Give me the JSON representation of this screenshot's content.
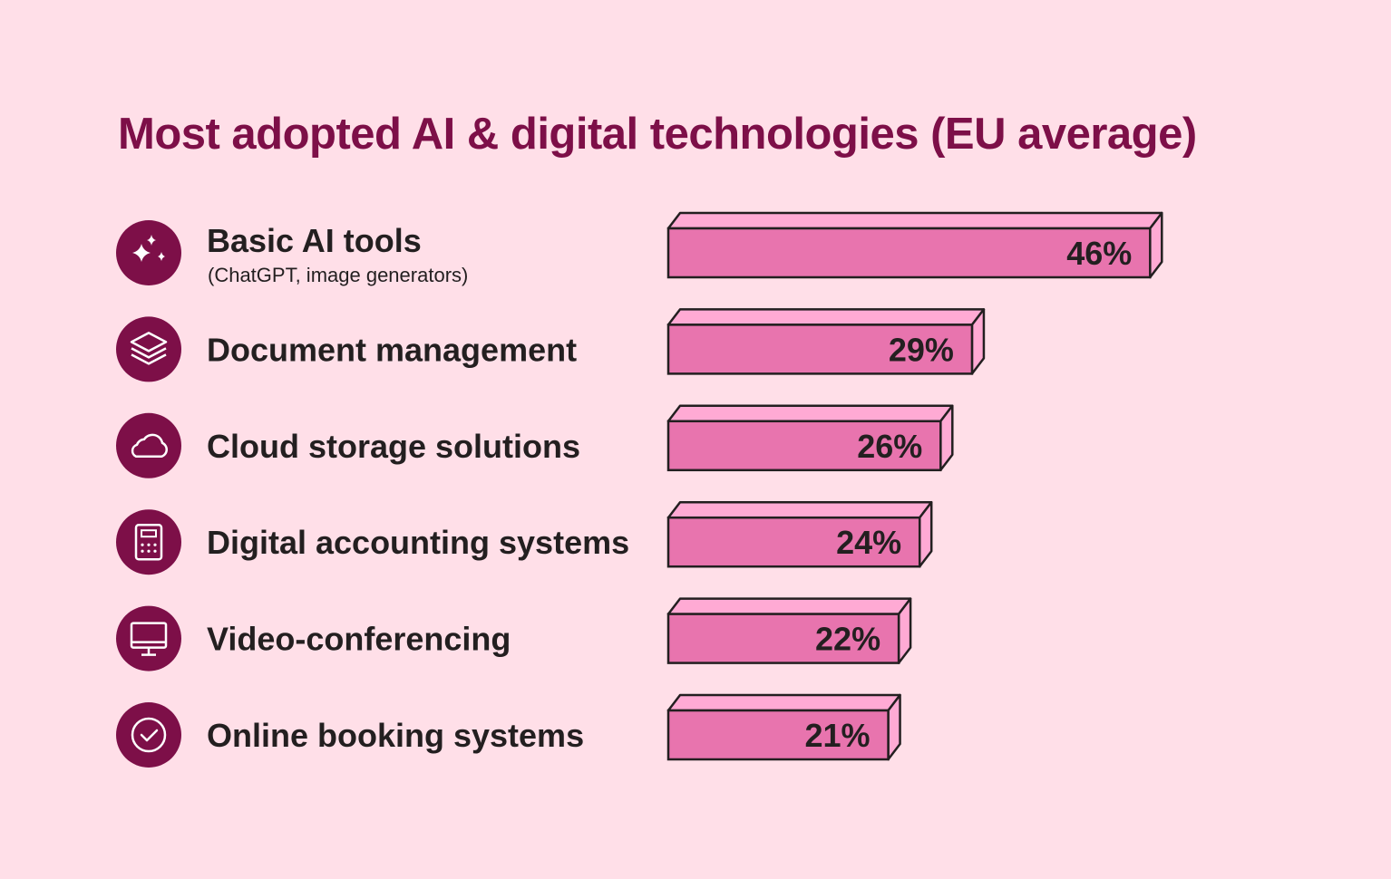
{
  "chart_data": {
    "type": "bar",
    "orientation": "horizontal",
    "title": "Most adopted AI & digital technologies (EU average)",
    "categories": [
      "Basic AI tools",
      "Document management",
      "Cloud storage solutions",
      "Digital accounting systems",
      "Video-conferencing",
      "Online booking systems"
    ],
    "subtitles": [
      "(ChatGPT, image generators)",
      "",
      "",
      "",
      "",
      ""
    ],
    "icons": [
      "sparkles-icon",
      "layers-icon",
      "cloud-icon",
      "calculator-icon",
      "monitor-icon",
      "check-circle-icon"
    ],
    "values": [
      46,
      29,
      26,
      24,
      22,
      21
    ],
    "value_labels": [
      "46%",
      "29%",
      "26%",
      "24%",
      "22%",
      "21%"
    ],
    "unit": "%",
    "xlabel": "",
    "ylabel": "",
    "grid": false
  },
  "colors": {
    "background": "#FFDFE8",
    "title": "#7D0F48",
    "icon_circle": "#7D0F48",
    "bar_front": "#E874AE",
    "bar_top": "#FFAAD4",
    "outline": "#231F20"
  }
}
